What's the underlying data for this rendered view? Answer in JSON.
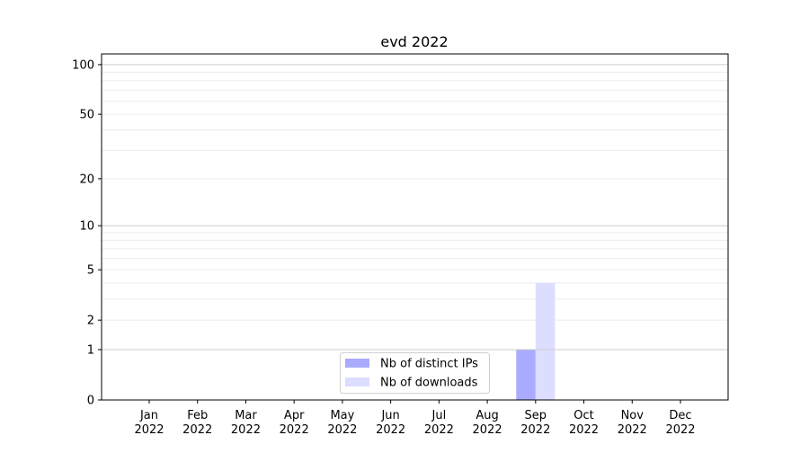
{
  "chart_data": {
    "type": "bar",
    "title": "evd 2022",
    "xlabel": "",
    "ylabel": "",
    "y_scale": "symlog (log10(1+y))",
    "ylim": [
      0,
      116
    ],
    "yticks": [
      0,
      1,
      2,
      5,
      10,
      20,
      50,
      100
    ],
    "ytick_labels": [
      "0",
      "1",
      "2",
      "5",
      "10",
      "20",
      "50",
      "100"
    ],
    "grid": true,
    "legend_position": "bottom-center",
    "categories": [
      "Jan\n2022",
      "Feb\n2022",
      "Mar\n2022",
      "Apr\n2022",
      "May\n2022",
      "Jun\n2022",
      "Jul\n2022",
      "Aug\n2022",
      "Sep\n2022",
      "Oct\n2022",
      "Nov\n2022",
      "Dec\n2022"
    ],
    "category_lines": [
      [
        "Jan",
        "2022"
      ],
      [
        "Feb",
        "2022"
      ],
      [
        "Mar",
        "2022"
      ],
      [
        "Apr",
        "2022"
      ],
      [
        "May",
        "2022"
      ],
      [
        "Jun",
        "2022"
      ],
      [
        "Jul",
        "2022"
      ],
      [
        "Aug",
        "2022"
      ],
      [
        "Sep",
        "2022"
      ],
      [
        "Oct",
        "2022"
      ],
      [
        "Nov",
        "2022"
      ],
      [
        "Dec",
        "2022"
      ]
    ],
    "series": [
      {
        "name": "Nb of distinct IPs",
        "color": "#aaaaff",
        "values": [
          0,
          0,
          0,
          0,
          0,
          0,
          0,
          0,
          1,
          0,
          0,
          0
        ]
      },
      {
        "name": "Nb of downloads",
        "color": "#ddddff",
        "values": [
          0,
          0,
          0,
          0,
          0,
          0,
          0,
          0,
          4,
          0,
          0,
          0
        ]
      }
    ]
  }
}
